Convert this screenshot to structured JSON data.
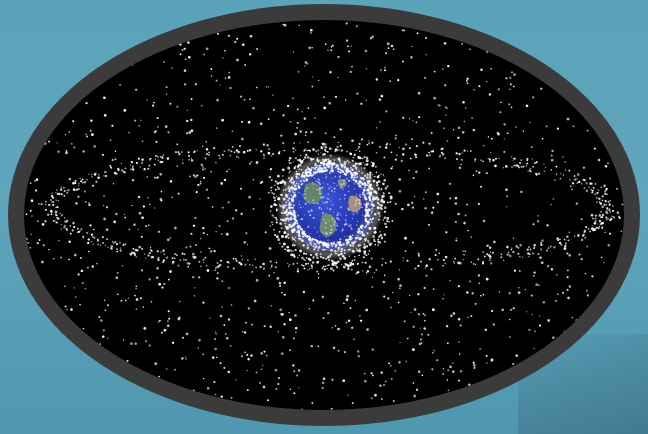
{
  "image": {
    "subject": "space-debris-around-earth",
    "colors": {
      "background": "#5aa3b9",
      "frame": "#3b3b3b",
      "space": "#000000",
      "debris": "#ffffff",
      "ocean": "#2438b8",
      "land": "#6f8f5a"
    },
    "elements": [
      "frame",
      "debris-field",
      "geostationary-ring",
      "earth",
      "debris-cloud"
    ]
  }
}
